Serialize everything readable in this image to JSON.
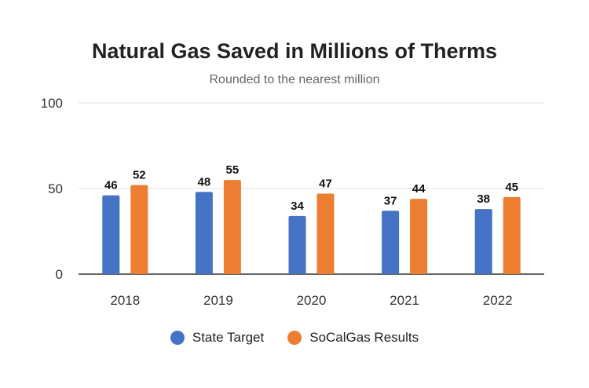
{
  "chart_data": {
    "type": "bar",
    "title": "Natural Gas Saved in Millions of Therms",
    "subtitle": "Rounded to the nearest million",
    "categories": [
      "2018",
      "2019",
      "2020",
      "2021",
      "2022"
    ],
    "series": [
      {
        "name": "State Target",
        "values": [
          46,
          48,
          34,
          37,
          38
        ],
        "color": "#4472c4"
      },
      {
        "name": "SoCalGas Results",
        "values": [
          52,
          55,
          47,
          44,
          45
        ],
        "color": "#ed7d31"
      }
    ],
    "yticks": [
      "0",
      "50",
      "100"
    ],
    "ylim": [
      0,
      100
    ],
    "grid": true,
    "legend_position": "bottom"
  }
}
